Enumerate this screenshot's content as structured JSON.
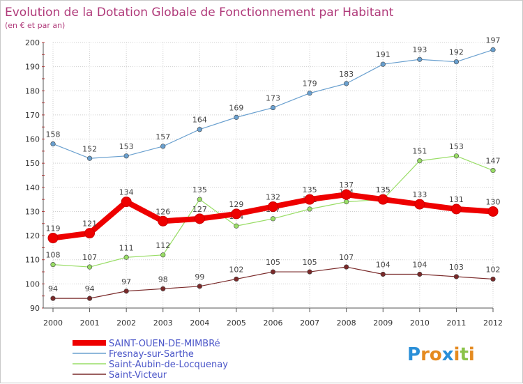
{
  "chart_data": {
    "type": "line",
    "title": "Evolution de la Dotation Globale de Fonctionnement par Habitant",
    "subtitle": "(en € et par an)",
    "xlabel": "",
    "ylabel": "",
    "x": [
      "2000",
      "2001",
      "2002",
      "2003",
      "2004",
      "2005",
      "2006",
      "2007",
      "2008",
      "2009",
      "2010",
      "2011",
      "2012"
    ],
    "ylim": [
      90,
      200
    ],
    "yticks": [
      "90",
      "100",
      "110",
      "120",
      "130",
      "140",
      "150",
      "160",
      "170",
      "180",
      "190",
      "200"
    ],
    "grid": true,
    "legend_position": "bottom-left",
    "series": [
      {
        "name": "SAINT-OUEN-DE-MIMBRé",
        "color": "#ee0000",
        "values": [
          119,
          121,
          134,
          126,
          127,
          129,
          132,
          135,
          137,
          135,
          133,
          131,
          130
        ]
      },
      {
        "name": "Fresnay-sur-Sarthe",
        "color": "#6aa0cf",
        "values": [
          158,
          152,
          153,
          157,
          164,
          169,
          173,
          179,
          183,
          191,
          193,
          192,
          197
        ]
      },
      {
        "name": "Saint-Aubin-de-Locquenay",
        "color": "#99dd66",
        "values": [
          108,
          107,
          111,
          112,
          135,
          124,
          127,
          131,
          134,
          135,
          151,
          153,
          147
        ]
      },
      {
        "name": "Saint-Victeur",
        "color": "#7a2a2a",
        "values": [
          94,
          94,
          97,
          98,
          99,
          102,
          105,
          105,
          107,
          104,
          104,
          103,
          102
        ]
      }
    ]
  },
  "logo": {
    "text": "Proxiti",
    "letters": [
      "P",
      "r",
      "o",
      "x",
      "i",
      "t",
      "i"
    ],
    "colors": [
      "#2a8fd8",
      "#e58a1f",
      "#e58a1f",
      "#2a8fd8",
      "#e58a1f",
      "#8bc34a",
      "#e58a1f"
    ]
  }
}
